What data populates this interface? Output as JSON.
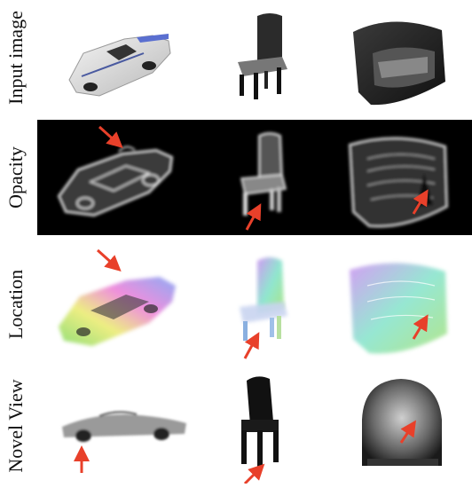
{
  "figure": {
    "rows": [
      {
        "label": "Input image"
      },
      {
        "label": "Opacity"
      },
      {
        "label": "Location"
      },
      {
        "label": "Novel View"
      }
    ],
    "objects": [
      "car",
      "chair",
      "armchair"
    ],
    "colors": {
      "arrow": "#e8402a",
      "opacity_bg": "#000000"
    }
  }
}
